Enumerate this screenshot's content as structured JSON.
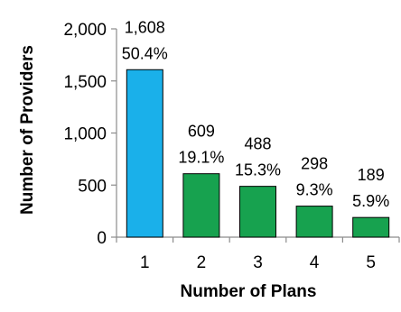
{
  "chart_data": {
    "type": "bar",
    "title": "",
    "xlabel": "Number of Plans",
    "ylabel": "Number of Providers",
    "categories": [
      "1",
      "2",
      "3",
      "4",
      "5"
    ],
    "values": [
      1608,
      609,
      488,
      298,
      189
    ],
    "percent_labels": [
      "50.4%",
      "19.1%",
      "15.3%",
      "9.3%",
      "5.9%"
    ],
    "ylim": [
      0,
      2000
    ],
    "yticks": [
      0,
      500,
      1000,
      1500,
      2000
    ],
    "ytick_labels": [
      "0",
      "500",
      "1,000",
      "1,500",
      "2,000"
    ],
    "value_labels": [
      "1,608",
      "609",
      "488",
      "298",
      "189"
    ],
    "bar_colors": [
      "#1ab0ea",
      "#17a24f",
      "#17a24f",
      "#17a24f",
      "#17a24f"
    ],
    "bar_stroke": "#000000",
    "grid": false,
    "legend": "none"
  }
}
